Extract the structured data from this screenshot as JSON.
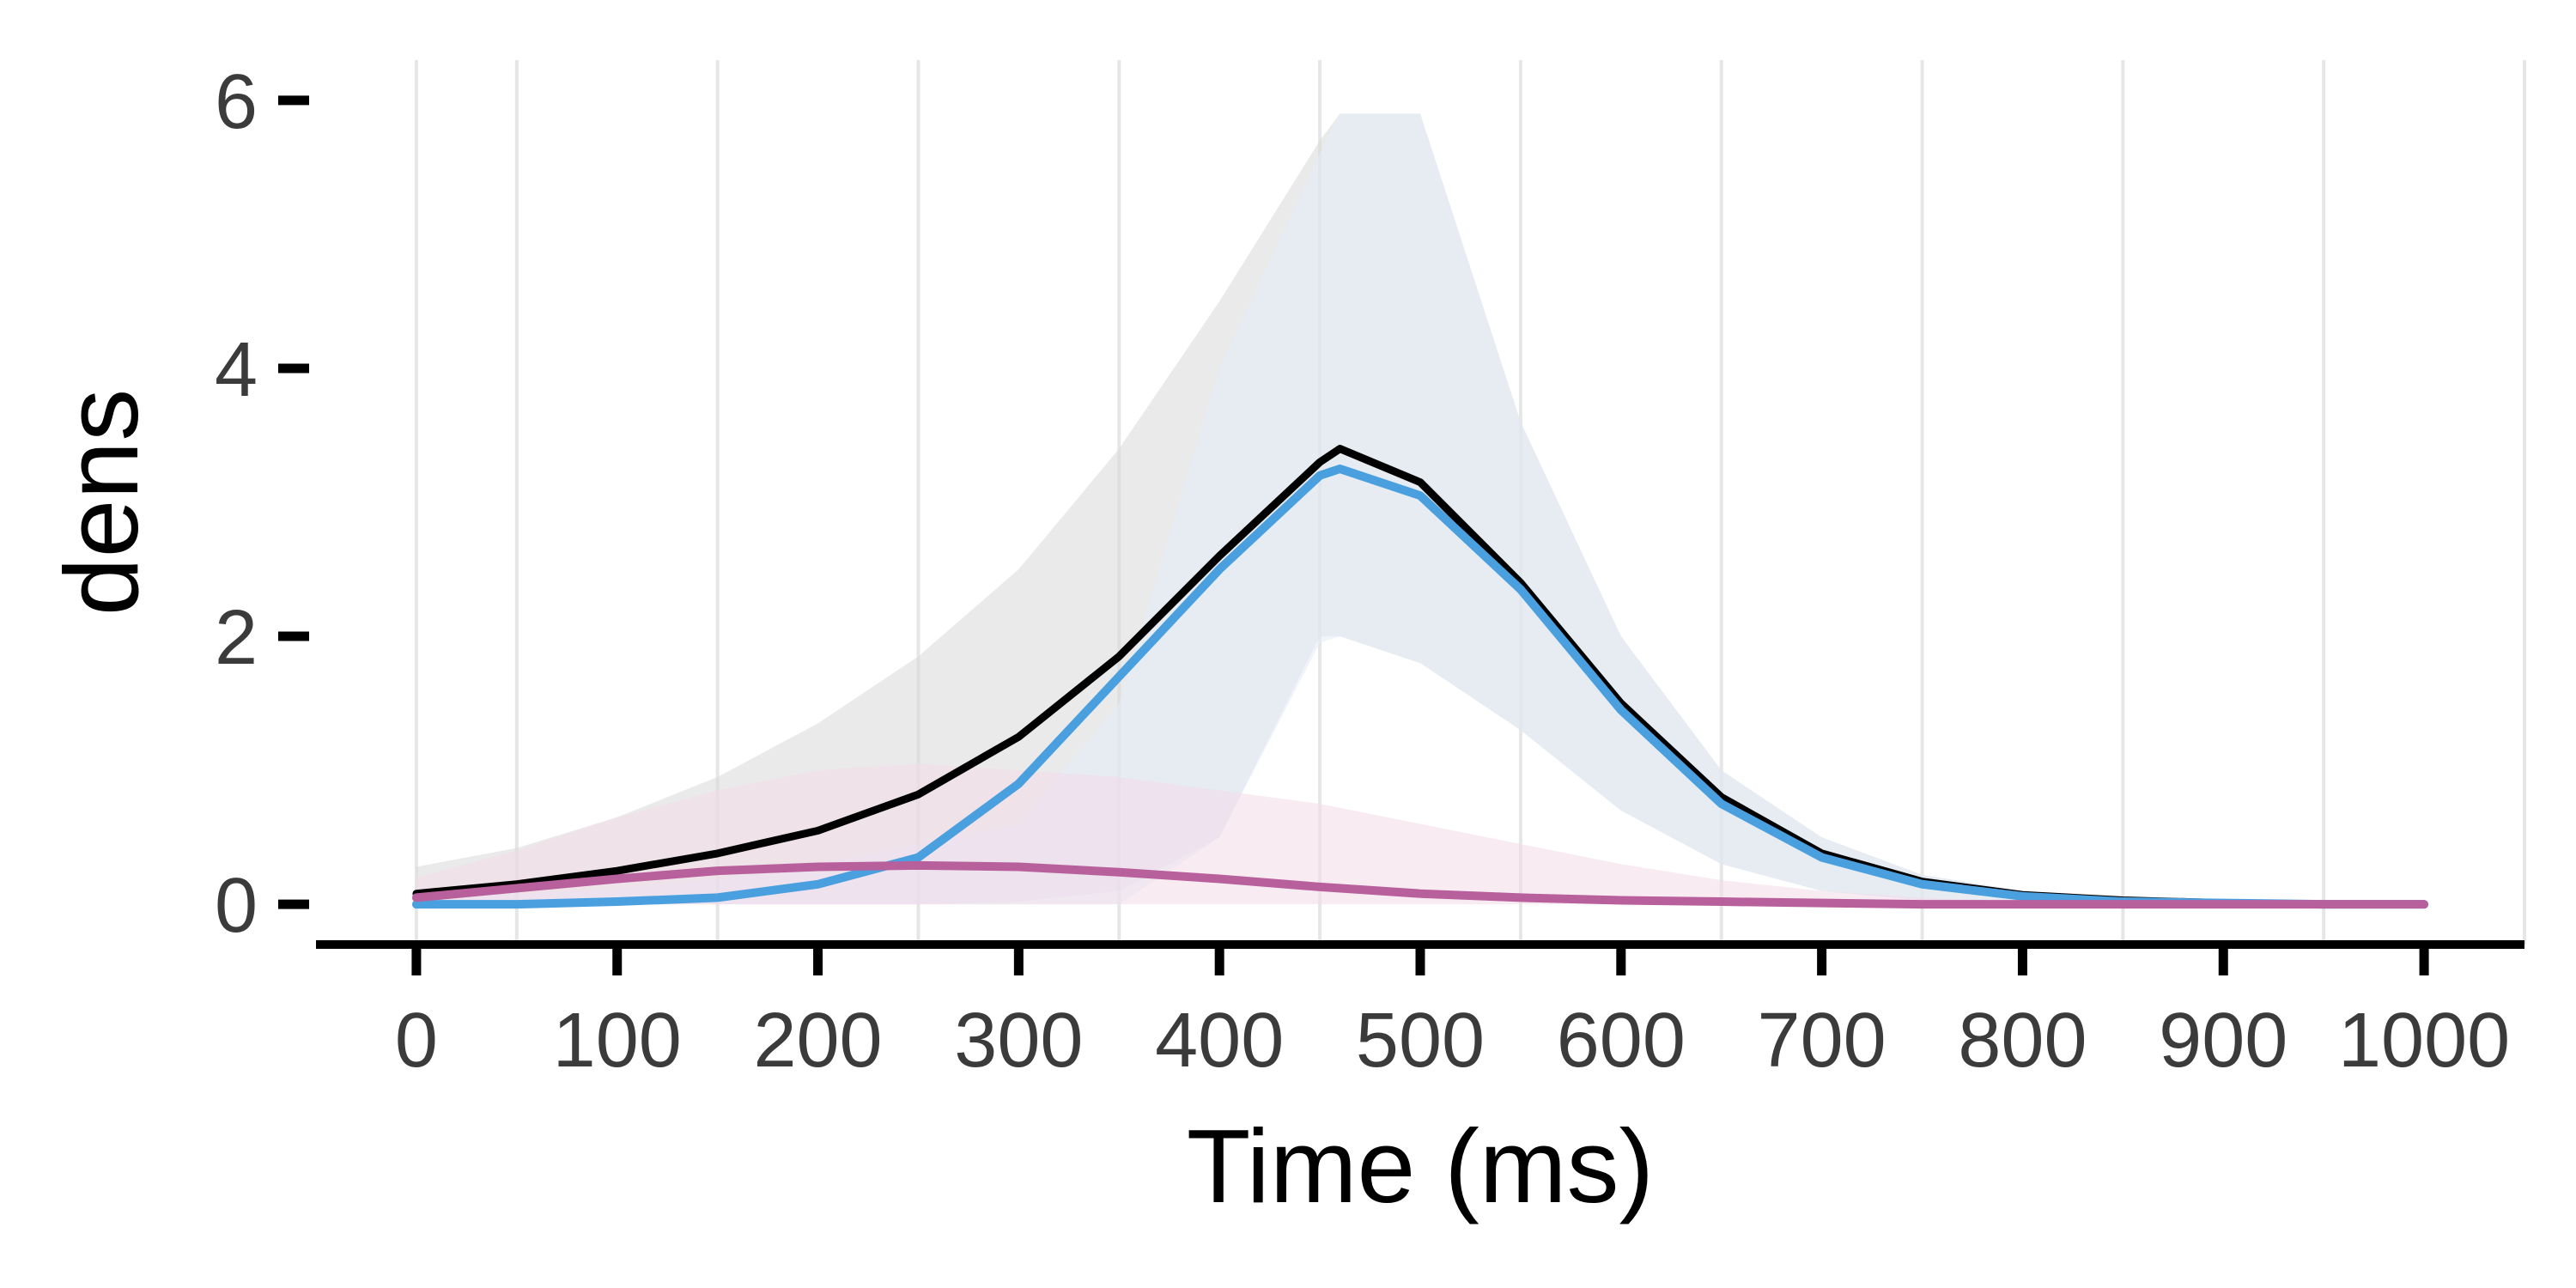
{
  "chart_data": {
    "type": "line",
    "title": "",
    "xlabel": "Time (ms)",
    "ylabel": "dens",
    "xlim": [
      -50,
      1050
    ],
    "ylim": [
      -0.3,
      6.3
    ],
    "xticks": [
      0,
      100,
      200,
      300,
      400,
      500,
      600,
      700,
      800,
      900,
      1000
    ],
    "xtick_labels": [
      "0",
      "100",
      "200",
      "300",
      "400",
      "500",
      "600",
      "700",
      "800",
      "900",
      "1000"
    ],
    "yticks": [
      0,
      2,
      4,
      6
    ],
    "ytick_labels": [
      "0",
      "2",
      "4",
      "6"
    ],
    "vertical_grid": [
      0,
      50,
      150,
      250,
      350,
      450,
      550,
      650,
      750,
      850,
      950,
      1050
    ],
    "grid": "vertical lines only",
    "legend": "none",
    "series": [
      {
        "color": "#000000",
        "x": [
          0,
          50,
          100,
          150,
          200,
          250,
          300,
          350,
          400,
          450,
          460,
          500,
          550,
          600,
          650,
          700,
          750,
          800,
          850,
          900,
          950,
          1000
        ],
        "y": [
          0.08,
          0.15,
          0.25,
          0.38,
          0.55,
          0.82,
          1.25,
          1.85,
          2.6,
          3.3,
          3.4,
          3.15,
          2.4,
          1.5,
          0.8,
          0.38,
          0.17,
          0.07,
          0.03,
          0.01,
          0.0,
          0.0
        ],
        "band": {
          "color": "#d9d9d9",
          "lower": [
            0.0,
            0.0,
            0.0,
            0.0,
            0.0,
            0.0,
            0.02,
            0.1,
            0.5,
            2.0,
            2.0,
            1.8,
            1.3,
            0.7,
            0.3,
            0.1,
            0.03,
            0.01,
            0.0,
            0.0,
            0.0,
            0.0
          ],
          "upper": [
            0.28,
            0.42,
            0.65,
            0.95,
            1.35,
            1.85,
            2.5,
            3.4,
            4.5,
            5.7,
            5.9,
            5.9,
            3.6,
            2.0,
            1.0,
            0.5,
            0.22,
            0.1,
            0.04,
            0.02,
            0.01,
            0.0
          ]
        }
      },
      {
        "color": "#4a9fdf",
        "x": [
          0,
          50,
          100,
          150,
          200,
          250,
          300,
          350,
          400,
          450,
          460,
          500,
          550,
          600,
          650,
          700,
          750,
          800,
          850,
          900,
          950,
          1000
        ],
        "y": [
          0.0,
          0.0,
          0.02,
          0.05,
          0.15,
          0.35,
          0.9,
          1.7,
          2.5,
          3.2,
          3.25,
          3.05,
          2.35,
          1.45,
          0.75,
          0.35,
          0.15,
          0.06,
          0.02,
          0.01,
          0.0,
          0.0
        ],
        "band": {
          "color": "#e3edfa",
          "lower": [
            0.0,
            0.0,
            0.0,
            0.0,
            0.0,
            0.0,
            0.0,
            0.0,
            0.5,
            1.95,
            2.0,
            1.8,
            1.3,
            0.7,
            0.3,
            0.1,
            0.03,
            0.0,
            0.0,
            0.0,
            0.0,
            0.0
          ],
          "upper": [
            0.05,
            0.08,
            0.12,
            0.2,
            0.3,
            0.45,
            0.6,
            1.5,
            4.0,
            5.6,
            5.9,
            5.9,
            3.6,
            2.0,
            1.0,
            0.5,
            0.22,
            0.1,
            0.04,
            0.02,
            0.01,
            0.0
          ]
        }
      },
      {
        "color": "#b8609c",
        "x": [
          0,
          50,
          100,
          150,
          200,
          250,
          300,
          350,
          400,
          450,
          500,
          550,
          600,
          650,
          700,
          750,
          800,
          850,
          900,
          950,
          1000
        ],
        "y": [
          0.05,
          0.12,
          0.19,
          0.25,
          0.28,
          0.29,
          0.28,
          0.24,
          0.19,
          0.13,
          0.08,
          0.05,
          0.03,
          0.02,
          0.01,
          0.0,
          0.0,
          0.0,
          0.0,
          0.0,
          0.0
        ],
        "band": {
          "color": "#f2dbe8",
          "lower": [
            0.0,
            0.0,
            0.0,
            0.0,
            0.0,
            0.0,
            0.0,
            0.0,
            0.0,
            0.0,
            0.0,
            0.0,
            0.0,
            0.0,
            0.0,
            0.0,
            0.0,
            0.0,
            0.0,
            0.0,
            0.0
          ],
          "upper": [
            0.2,
            0.4,
            0.65,
            0.85,
            1.0,
            1.05,
            1.0,
            0.95,
            0.85,
            0.75,
            0.6,
            0.45,
            0.3,
            0.18,
            0.1,
            0.05,
            0.02,
            0.0,
            0.0,
            0.0,
            0.0
          ]
        }
      }
    ]
  }
}
